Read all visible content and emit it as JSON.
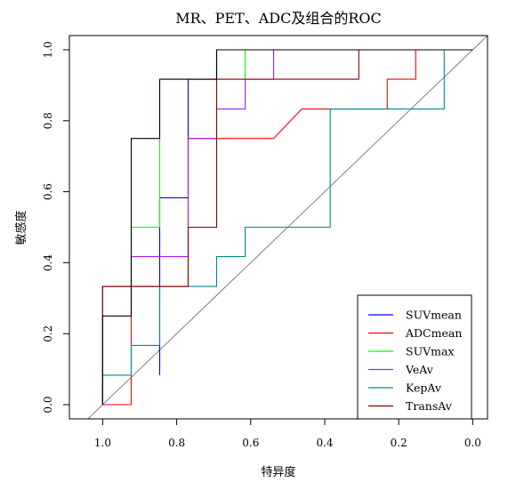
{
  "chart_data": {
    "type": "line",
    "title": "MR、PET、ADC及组合的ROC",
    "xlabel": "特异度",
    "ylabel": "敏感度",
    "x_reversed": true,
    "xlim": [
      1.09,
      -0.04
    ],
    "ylim": [
      -0.04,
      1.04
    ],
    "xticks": [
      1.0,
      0.8,
      0.6,
      0.4,
      0.2,
      0.0
    ],
    "xtick_labels": [
      "1.0",
      "0.8",
      "0.6",
      "0.4",
      "0.2",
      "0.0"
    ],
    "yticks": [
      0.0,
      0.2,
      0.4,
      0.6,
      0.8,
      1.0
    ],
    "ytick_labels": [
      "0.0",
      "0.2",
      "0.4",
      "0.6",
      "0.8",
      "1.0"
    ],
    "legend_position": "bottom-right",
    "diagonal_color": "#808080",
    "series": [
      {
        "name": "SUVmean",
        "color": "#0000FF",
        "points": [
          [
            1.0,
            0.0
          ],
          [
            1.0,
            0.333
          ],
          [
            0.846,
            0.333
          ],
          [
            0.846,
            0.083
          ],
          [
            0.846,
            0.583
          ],
          [
            0.769,
            0.583
          ],
          [
            0.769,
            0.917
          ],
          [
            0.692,
            0.917
          ],
          [
            0.692,
            1.0
          ],
          [
            0.0,
            1.0
          ]
        ]
      },
      {
        "name": "ADCmean",
        "color": "#FF0000",
        "points": [
          [
            1.0,
            0.0
          ],
          [
            0.923,
            0.0
          ],
          [
            0.923,
            0.333
          ],
          [
            0.769,
            0.333
          ],
          [
            0.769,
            0.75
          ],
          [
            0.538,
            0.75
          ],
          [
            0.462,
            0.833
          ],
          [
            0.231,
            0.833
          ],
          [
            0.231,
            0.917
          ],
          [
            0.154,
            0.917
          ],
          [
            0.154,
            1.0
          ],
          [
            0.0,
            1.0
          ]
        ]
      },
      {
        "name": "SUVmax",
        "color": "#00FF00",
        "points": [
          [
            1.0,
            0.0
          ],
          [
            1.0,
            0.333
          ],
          [
            0.923,
            0.333
          ],
          [
            0.923,
            0.5
          ],
          [
            0.846,
            0.5
          ],
          [
            0.846,
            0.917
          ],
          [
            0.615,
            0.917
          ],
          [
            0.615,
            1.0
          ],
          [
            0.0,
            1.0
          ]
        ]
      },
      {
        "name": "VeAv",
        "color": "#A020F0",
        "points": [
          [
            1.0,
            0.0
          ],
          [
            1.0,
            0.333
          ],
          [
            0.923,
            0.333
          ],
          [
            0.923,
            0.417
          ],
          [
            0.769,
            0.417
          ],
          [
            0.769,
            0.75
          ],
          [
            0.692,
            0.75
          ],
          [
            0.692,
            0.833
          ],
          [
            0.615,
            0.833
          ],
          [
            0.615,
            0.917
          ],
          [
            0.538,
            0.917
          ],
          [
            0.538,
            1.0
          ],
          [
            0.0,
            1.0
          ]
        ]
      },
      {
        "name": "KepAv",
        "color": "#008B8B",
        "points": [
          [
            1.0,
            0.0
          ],
          [
            1.0,
            0.083
          ],
          [
            0.923,
            0.083
          ],
          [
            0.923,
            0.167
          ],
          [
            0.846,
            0.167
          ],
          [
            0.846,
            0.333
          ],
          [
            0.692,
            0.333
          ],
          [
            0.692,
            0.417
          ],
          [
            0.615,
            0.417
          ],
          [
            0.615,
            0.5
          ],
          [
            0.385,
            0.5
          ],
          [
            0.385,
            0.833
          ],
          [
            0.077,
            0.833
          ],
          [
            0.077,
            1.0
          ],
          [
            0.0,
            1.0
          ]
        ]
      },
      {
        "name": "TransAv",
        "color": "#8B0000",
        "points": [
          [
            1.0,
            0.0
          ],
          [
            1.0,
            0.333
          ],
          [
            0.769,
            0.333
          ],
          [
            0.769,
            0.5
          ],
          [
            0.692,
            0.5
          ],
          [
            0.692,
            0.917
          ],
          [
            0.308,
            0.917
          ],
          [
            0.308,
            1.0
          ],
          [
            0.0,
            1.0
          ]
        ]
      },
      {
        "name": "",
        "color": "#000000",
        "points": [
          [
            1.0,
            0.0
          ],
          [
            1.0,
            0.25
          ],
          [
            0.923,
            0.25
          ],
          [
            0.923,
            0.75
          ],
          [
            0.846,
            0.75
          ],
          [
            0.846,
            0.917
          ],
          [
            0.692,
            0.917
          ],
          [
            0.692,
            1.0
          ],
          [
            0.0,
            1.0
          ]
        ]
      }
    ]
  }
}
